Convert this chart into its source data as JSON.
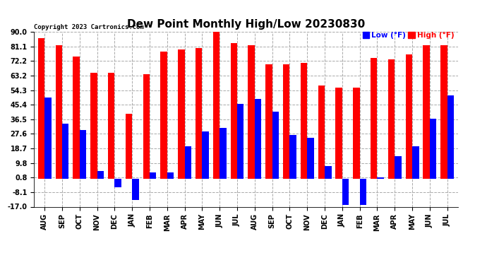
{
  "title": "Dew Point Monthly High/Low 20230830",
  "copyright": "Copyright 2023 Cartronics.com",
  "months": [
    "AUG",
    "SEP",
    "OCT",
    "NOV",
    "DEC",
    "JAN",
    "FEB",
    "MAR",
    "APR",
    "MAY",
    "JUN",
    "JUL",
    "AUG",
    "SEP",
    "OCT",
    "NOV",
    "DEC",
    "JAN",
    "FEB",
    "MAR",
    "APR",
    "MAY",
    "JUN",
    "JUL"
  ],
  "highs": [
    86,
    82,
    75,
    65,
    65,
    40,
    64,
    78,
    79,
    80,
    91,
    83,
    82,
    70,
    70,
    71,
    57,
    56,
    56,
    74,
    73,
    76,
    82,
    82
  ],
  "lows": [
    50,
    34,
    30,
    5,
    -5,
    -13,
    4,
    4,
    20,
    29,
    31,
    46,
    49,
    41,
    27,
    25,
    8,
    -16,
    -16,
    1,
    14,
    20,
    37,
    51
  ],
  "ymin": -17.0,
  "ymax": 90.0,
  "yticks": [
    90.0,
    81.1,
    72.2,
    63.2,
    54.3,
    45.4,
    36.5,
    27.6,
    18.7,
    9.8,
    0.8,
    -8.1,
    -17.0
  ],
  "ytick_labels": [
    "90.0",
    "81.1",
    "72.2",
    "63.2",
    "54.3",
    "45.4",
    "36.5",
    "27.6",
    "18.7",
    "9.8",
    "0.8",
    "-8.1",
    "-17.0"
  ],
  "high_color": "#ff0000",
  "low_color": "#0000ff",
  "bg_color": "#ffffff",
  "grid_color": "#aaaaaa",
  "title_fontsize": 11,
  "tick_fontsize": 7,
  "legend_low_label": "Low",
  "legend_high_label": "High",
  "legend_unit": "(°F)"
}
